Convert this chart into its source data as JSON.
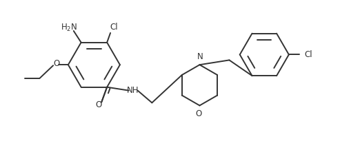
{
  "background_color": "#ffffff",
  "line_color": "#333333",
  "text_color": "#333333",
  "line_width": 1.4,
  "font_size": 8.5,
  "figsize": [
    4.93,
    2.24
  ],
  "dpi": 100,
  "xlim": [
    0,
    4.93
  ],
  "ylim": [
    0,
    2.24
  ]
}
